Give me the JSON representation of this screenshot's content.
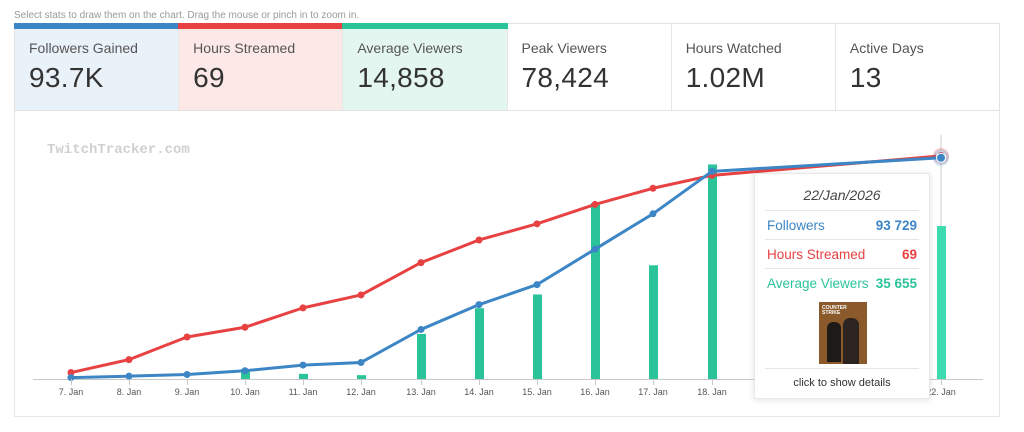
{
  "hint": "Select stats to draw them on the chart. Drag the mouse or pinch in to zoom in.",
  "stats": [
    {
      "label": "Followers Gained",
      "value": "93.7K",
      "color": "#3d86c6",
      "bg": "#eaf2f9",
      "active": true
    },
    {
      "label": "Hours Streamed",
      "value": "69",
      "color": "#e84142",
      "bg": "#fde8e8",
      "active": true
    },
    {
      "label": "Average Viewers",
      "value": "14,858",
      "color": "#2bc39a",
      "bg": "#e4f6f0",
      "active": true
    },
    {
      "label": "Peak Viewers",
      "value": "78,424",
      "color": "",
      "bg": "#ffffff",
      "active": false
    },
    {
      "label": "Hours Watched",
      "value": "1.02M",
      "color": "",
      "bg": "#ffffff",
      "active": false
    },
    {
      "label": "Active Days",
      "value": "13",
      "color": "",
      "bg": "#ffffff",
      "active": false
    }
  ],
  "chart_data": {
    "type": "line",
    "watermark": "TwitchTracker.com",
    "categories": [
      "7. Jan",
      "8. Jan",
      "9. Jan",
      "10. Jan",
      "11. Jan",
      "12. Jan",
      "13. Jan",
      "14. Jan",
      "15. Jan",
      "16. Jan",
      "17. Jan",
      "18. Jan",
      "22. Jan"
    ],
    "series": [
      {
        "name": "Followers",
        "type": "line",
        "color": "#3d86c6",
        "values": [
          600,
          1200,
          1900,
          3500,
          5900,
          7000,
          21000,
          31500,
          40000,
          55000,
          70000,
          88000,
          93729
        ]
      },
      {
        "name": "Hours Streamed",
        "type": "line",
        "color": "#e84142",
        "values": [
          2,
          6,
          13,
          16,
          22,
          26,
          36,
          43,
          48,
          54,
          59,
          63,
          69
        ]
      },
      {
        "name": "Average Viewers",
        "type": "bar",
        "color": "#2bc39a",
        "values": [
          0,
          0,
          0,
          2300,
          1200,
          900,
          10500,
          16500,
          19700,
          41000,
          26500,
          50000,
          35655
        ]
      }
    ],
    "ylim": {
      "Followers": [
        0,
        100000
      ],
      "Hours Streamed": [
        0,
        73
      ],
      "Average Viewers": [
        0,
        55000
      ]
    }
  },
  "tooltip": {
    "date": "22/Jan/2026",
    "rows": [
      {
        "name": "Followers",
        "value": "93 729",
        "color": "#3d86c6"
      },
      {
        "name": "Hours Streamed",
        "value": "69",
        "color": "#e84142"
      },
      {
        "name": "Average Viewers",
        "value": "35 655",
        "color": "#2bc39a"
      }
    ],
    "game_logo": "COUNTER STRIKE",
    "details": "click to show details"
  }
}
